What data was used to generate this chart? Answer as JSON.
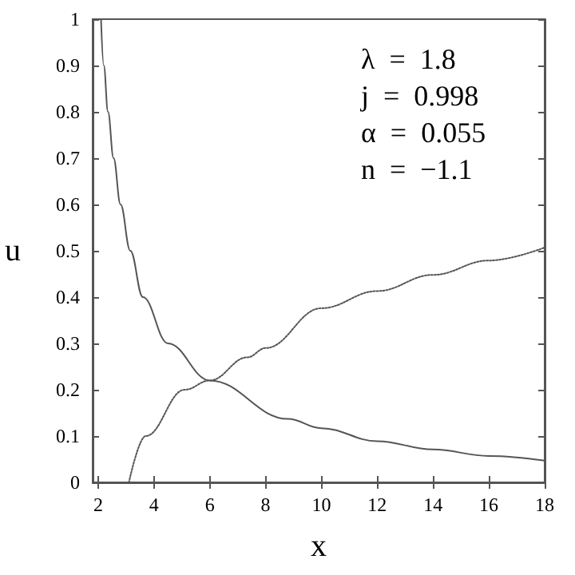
{
  "chart_data": {
    "type": "line",
    "xlabel": "x",
    "ylabel": "u",
    "annotations": [
      "λ  =  1.8",
      "j  =  0.998",
      "α  =  0.055",
      "n  =  −1.1"
    ],
    "series": [
      {
        "color": "#555555",
        "line_style": "solid",
        "x": [
          2.1,
          2.2,
          2.35,
          2.55,
          2.8,
          3.15,
          3.6,
          4.5,
          6,
          8.8,
          10,
          12,
          14,
          16,
          18
        ],
        "values": [
          1.0,
          0.9,
          0.8,
          0.7,
          0.6,
          0.5,
          0.4,
          0.3,
          0.22,
          0.137,
          0.117,
          0.089,
          0.071,
          0.057,
          0.047
        ]
      },
      {
        "color": "#555555",
        "line_style": "dotted",
        "x": [
          3.1,
          3.7,
          5.1,
          6,
          7.35,
          8,
          10,
          12,
          14,
          16,
          18
        ],
        "values": [
          0,
          0.1,
          0.2,
          0.22,
          0.27,
          0.29,
          0.376,
          0.413,
          0.448,
          0.479,
          0.507
        ]
      }
    ],
    "marker": "none",
    "grid": false,
    "xlim": [
      1.8,
      18
    ],
    "xticks": [
      2,
      4,
      6,
      8,
      10,
      12,
      14,
      16,
      18
    ],
    "ylim": [
      0,
      1
    ],
    "yticks": [
      0,
      0.1,
      0.2,
      0.3,
      0.4,
      0.5,
      0.6,
      0.7,
      0.8,
      0.9,
      1
    ]
  }
}
